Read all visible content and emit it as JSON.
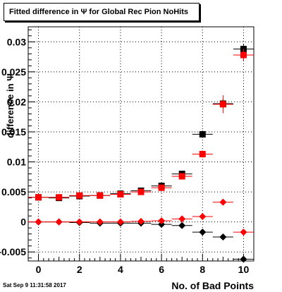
{
  "title": "Fitted difference in  Ψ  for Global Rec Pion NoHits",
  "timestamp": "Sat Sep  9 11:31:58 2017",
  "chart_data": {
    "type": "scatter",
    "title": "Fitted difference in  Ψ  for Global Rec Pion NoHits",
    "xlabel": "No. of Bad Points",
    "ylabel": "difference in Ψ",
    "xlim": [
      -0.5,
      10.5
    ],
    "ylim": [
      -0.0065,
      0.0325
    ],
    "x_ticks": [
      0,
      2,
      4,
      6,
      8,
      10
    ],
    "y_ticks": [
      -0.005,
      0,
      0.005,
      0.01,
      0.015,
      0.02,
      0.025,
      0.03
    ],
    "y_tick_labels": [
      "-0.005",
      "0",
      "0.005",
      "0.01",
      "0.015",
      "0.02",
      "0.025",
      "0.03"
    ],
    "grid": true,
    "series": [
      {
        "marker": "square",
        "color": "#000000",
        "x": [
          0,
          1,
          2,
          3,
          4,
          5,
          6,
          7,
          8,
          9,
          10
        ],
        "y": [
          0.0041,
          0.004,
          0.0043,
          0.0044,
          0.0047,
          0.0052,
          0.006,
          0.008,
          0.0146,
          0.0197,
          0.0288
        ],
        "err": [
          0.0002,
          0.0002,
          0.0002,
          0.0002,
          0.0002,
          0.0003,
          0.0003,
          0.0004,
          0.0006,
          0.0008,
          0.0008
        ]
      },
      {
        "marker": "square",
        "color": "#ff0000",
        "x": [
          0,
          1,
          2,
          3,
          4,
          5,
          6,
          7,
          8,
          9,
          10
        ],
        "y": [
          0.0041,
          0.0041,
          0.0044,
          0.0044,
          0.0046,
          0.005,
          0.0057,
          0.0076,
          0.0113,
          0.0196,
          0.0278
        ],
        "err": [
          0.0002,
          0.0002,
          0.0002,
          0.0002,
          0.0002,
          0.0003,
          0.0003,
          0.0004,
          0.0006,
          0.0015,
          0.001
        ]
      },
      {
        "marker": "diamond",
        "color": "#000000",
        "x": [
          0,
          1,
          2,
          3,
          4,
          5,
          6,
          7,
          8,
          9,
          10
        ],
        "y": [
          0.0,
          0.0,
          -0.0001,
          -0.0002,
          -0.0002,
          -0.0002,
          -0.0004,
          -0.0006,
          -0.0017,
          -0.0025,
          -0.0062
        ],
        "err": [
          0.0001,
          0.0001,
          0.0001,
          0.0001,
          0.0001,
          0.0001,
          0.0002,
          0.0002,
          0.0003,
          0.0003,
          0.0004
        ]
      },
      {
        "marker": "diamond",
        "color": "#ff0000",
        "x": [
          0,
          1,
          2,
          3,
          4,
          5,
          6,
          7,
          8,
          9,
          10
        ],
        "y": [
          0.0,
          0.0,
          0.0,
          0.0,
          0.0,
          0.0001,
          0.0002,
          0.0005,
          0.0009,
          0.0033,
          -0.0017
        ],
        "err": [
          0.0001,
          0.0001,
          0.0001,
          0.0001,
          0.0001,
          0.0001,
          0.0002,
          0.0002,
          0.0003,
          0.0003,
          0.0004
        ]
      }
    ]
  }
}
